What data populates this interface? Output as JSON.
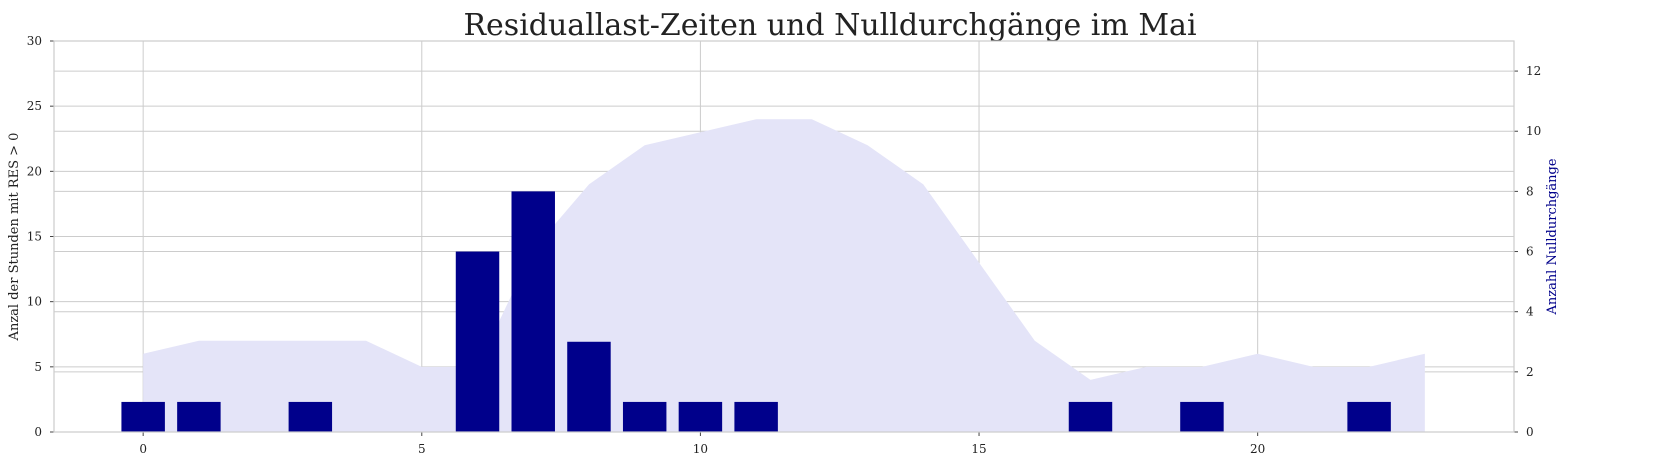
{
  "chart_data": {
    "type": "bar",
    "title": "Residuallast-Zeiten und Nulldurchgänge im Mai",
    "xlabel": "",
    "ylabel_left": "Anzal der Stunden mit RES > 0",
    "ylabel_right": "Anzahl Nulldurchgänge",
    "x_ticks": [
      0,
      5,
      10,
      15,
      20
    ],
    "y_left_ticks": [
      0,
      5,
      10,
      15,
      20,
      25,
      30
    ],
    "y_right_ticks": [
      0,
      2,
      4,
      6,
      8,
      10,
      12
    ],
    "xlim": [
      -1.6,
      24.6
    ],
    "ylim_left": [
      0,
      30
    ],
    "ylim_right": [
      0,
      13
    ],
    "grid": true,
    "colors": {
      "area": "#e4e4f8",
      "bars": "#00008b",
      "right_label": "#00008b",
      "grid": "#cccccc"
    },
    "series": [
      {
        "type": "area",
        "axis": "left",
        "x": [
          0,
          1,
          2,
          3,
          4,
          5,
          6,
          7,
          8,
          9,
          10,
          11,
          12,
          13,
          14,
          15,
          16,
          17,
          18,
          19,
          20,
          21,
          22,
          23
        ],
        "values": [
          6,
          7,
          7,
          7,
          7,
          5,
          5,
          14,
          19,
          22,
          23,
          24,
          24,
          22,
          19,
          13,
          7,
          4,
          5,
          5,
          6,
          5,
          5,
          6
        ]
      },
      {
        "type": "bar",
        "axis": "right",
        "x": [
          0,
          1,
          2,
          3,
          4,
          5,
          6,
          7,
          8,
          9,
          10,
          11,
          12,
          13,
          14,
          15,
          16,
          17,
          18,
          19,
          20,
          21,
          22,
          23
        ],
        "values": [
          1,
          1,
          0,
          1,
          0,
          0,
          6,
          8,
          3,
          1,
          1,
          1,
          0,
          0,
          0,
          0,
          0,
          1,
          0,
          1,
          0,
          0,
          1,
          0
        ]
      }
    ]
  }
}
